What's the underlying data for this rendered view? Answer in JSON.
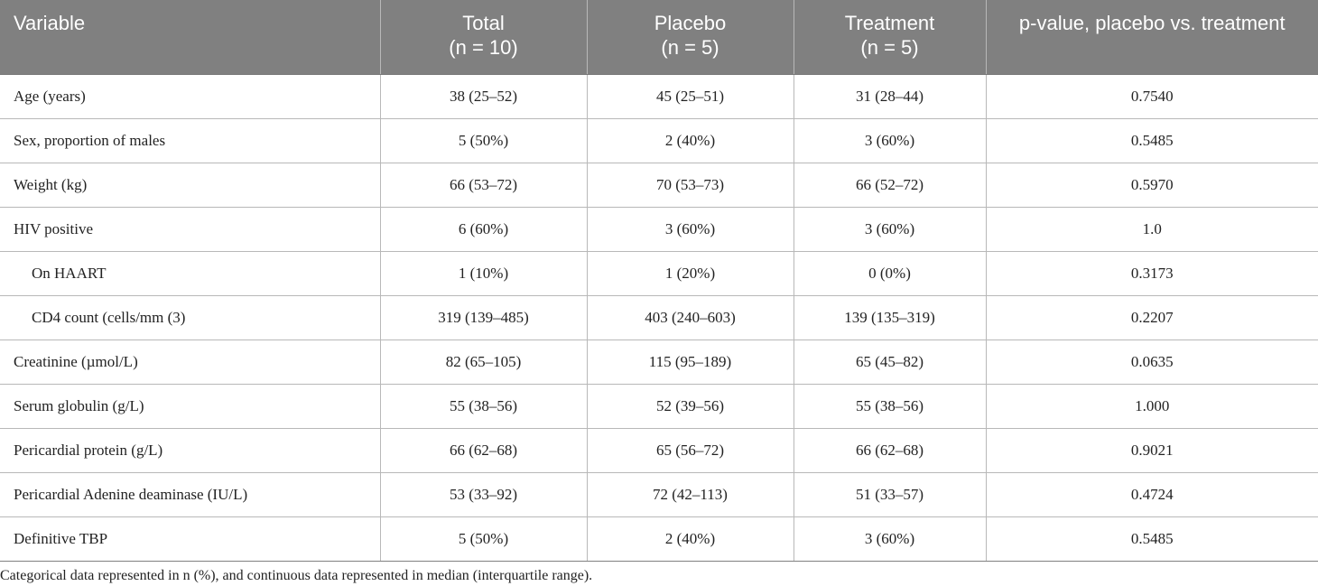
{
  "table": {
    "headers": [
      {
        "line1": "Variable",
        "line2": ""
      },
      {
        "line1": "Total",
        "line2": "(n = 10)"
      },
      {
        "line1": "Placebo",
        "line2": "(n = 5)"
      },
      {
        "line1": "Treatment",
        "line2": "(n = 5)"
      },
      {
        "line1": "p-value, placebo vs. treatment",
        "line2": ""
      }
    ],
    "rows": [
      {
        "variable": "Age (years)",
        "total": "38 (25–52)",
        "placebo": "45 (25–51)",
        "treatment": "31 (28–44)",
        "p": "0.7540"
      },
      {
        "variable": "Sex, proportion of males",
        "total": "5 (50%)",
        "placebo": "2 (40%)",
        "treatment": "3 (60%)",
        "p": "0.5485"
      },
      {
        "variable": "Weight (kg)",
        "total": "66 (53–72)",
        "placebo": "70 (53–73)",
        "treatment": "66 (52–72)",
        "p": "0.5970"
      },
      {
        "variable": "HIV positive",
        "total": "6 (60%)",
        "placebo": "3 (60%)",
        "treatment": "3 (60%)",
        "p": "1.0"
      },
      {
        "variable": "On HAART",
        "total": "1 (10%)",
        "placebo": "1 (20%)",
        "treatment": "0 (0%)",
        "p": "0.3173"
      },
      {
        "variable": "CD4 count (cells/mm (3)",
        "total": "319 (139–485)",
        "placebo": "403 (240–603)",
        "treatment": "139 (135–319)",
        "p": "0.2207"
      },
      {
        "variable": "Creatinine (µmol/L)",
        "total": "82 (65–105)",
        "placebo": "115 (95–189)",
        "treatment": "65 (45–82)",
        "p": "0.0635"
      },
      {
        "variable": "Serum globulin (g/L)",
        "total": "55 (38–56)",
        "placebo": "52 (39–56)",
        "treatment": "55 (38–56)",
        "p": "1.000"
      },
      {
        "variable": "Pericardial protein (g/L)",
        "total": "66 (62–68)",
        "placebo": "65 (56–72)",
        "treatment": "66 (62–68)",
        "p": "0.9021"
      },
      {
        "variable": "Pericardial Adenine deaminase (IU/L)",
        "total": "53 (33–92)",
        "placebo": "72 (42–113)",
        "treatment": "51 (33–57)",
        "p": "0.4724"
      },
      {
        "variable": "Definitive TBP",
        "total": "5 (50%)",
        "placebo": "2 (40%)",
        "treatment": "3 (60%)",
        "p": "0.5485"
      }
    ]
  },
  "footnote": "Categorical data represented in n (%), and continuous data represented in median (interquartile range).",
  "colors": {
    "header_bg": "#808080",
    "header_text": "#ffffff",
    "grid": "#b8b8b8",
    "text": "#222222"
  }
}
